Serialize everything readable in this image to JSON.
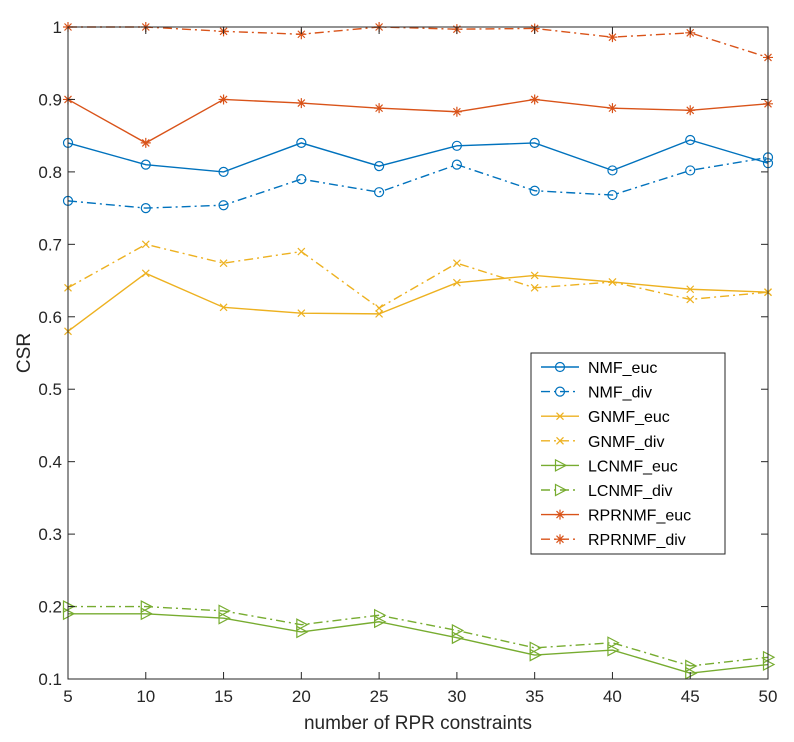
{
  "chart_data": {
    "type": "line",
    "title": "",
    "xlabel": "number of RPR constraints",
    "ylabel": "CSR",
    "x": [
      5,
      10,
      15,
      20,
      25,
      30,
      35,
      40,
      45,
      50
    ],
    "xlim": [
      5,
      50
    ],
    "ylim": [
      0.1,
      1.0
    ],
    "xticks": [
      "5",
      "10",
      "15",
      "20",
      "25",
      "30",
      "35",
      "40",
      "45",
      "50"
    ],
    "yticks": [
      "0.1",
      "0.2",
      "0.3",
      "0.4",
      "0.5",
      "0.6",
      "0.7",
      "0.8",
      "0.9",
      "1"
    ],
    "grid": false,
    "legend_position": "right-middle",
    "series": [
      {
        "name": "NMF_euc",
        "color": "#0072BD",
        "line": "solid",
        "marker": "circle",
        "values": [
          0.84,
          0.81,
          0.8,
          0.84,
          0.808,
          0.836,
          0.84,
          0.802,
          0.844,
          0.812
        ]
      },
      {
        "name": "NMF_div",
        "color": "#0072BD",
        "line": "dashdot",
        "marker": "circle",
        "values": [
          0.76,
          0.75,
          0.754,
          0.79,
          0.772,
          0.81,
          0.774,
          0.768,
          0.802,
          0.82
        ]
      },
      {
        "name": "GNMF_euc",
        "color": "#EDB120",
        "line": "solid",
        "marker": "x",
        "values": [
          0.58,
          0.66,
          0.613,
          0.605,
          0.604,
          0.647,
          0.657,
          0.648,
          0.638,
          0.634
        ]
      },
      {
        "name": "GNMF_div",
        "color": "#EDB120",
        "line": "dashdot",
        "marker": "x",
        "values": [
          0.64,
          0.7,
          0.674,
          0.69,
          0.612,
          0.674,
          0.64,
          0.648,
          0.624,
          0.634
        ]
      },
      {
        "name": "LCNMF_euc",
        "color": "#77AC30",
        "line": "solid",
        "marker": "triangle-right",
        "values": [
          0.19,
          0.19,
          0.184,
          0.165,
          0.179,
          0.157,
          0.133,
          0.14,
          0.108,
          0.12
        ]
      },
      {
        "name": "LCNMF_div",
        "color": "#77AC30",
        "line": "dashdot",
        "marker": "triangle-right",
        "values": [
          0.2,
          0.2,
          0.194,
          0.175,
          0.188,
          0.167,
          0.143,
          0.15,
          0.118,
          0.13
        ]
      },
      {
        "name": "RPRNMF_euc",
        "color": "#D95319",
        "line": "solid",
        "marker": "asterisk",
        "values": [
          0.9,
          0.84,
          0.9,
          0.895,
          0.888,
          0.883,
          0.9,
          0.888,
          0.885,
          0.894
        ]
      },
      {
        "name": "RPRNMF_div",
        "color": "#D95319",
        "line": "dashdot",
        "marker": "asterisk",
        "values": [
          1.0,
          1.0,
          0.994,
          0.99,
          1.0,
          0.997,
          0.998,
          0.986,
          0.992,
          0.958
        ]
      }
    ]
  }
}
